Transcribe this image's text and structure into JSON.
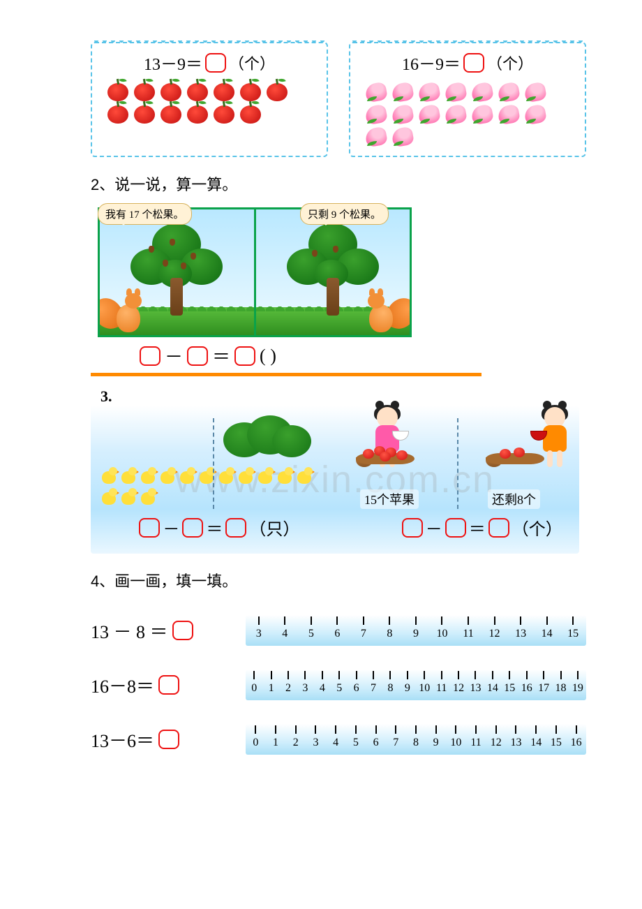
{
  "banner_apples": {
    "eq_lhs": "13－9＝",
    "unit": "（个）",
    "count": 13
  },
  "banner_peaches": {
    "eq_lhs": "16－9＝",
    "unit": "（个）",
    "count": 16
  },
  "q2": {
    "title": "2、说一说，算一算。",
    "bubble_left": "我有 17 个松果。",
    "bubble_right": "只剩 9 个松果。",
    "eq_unit": "(   )"
  },
  "q3": {
    "number": "3.",
    "chicks_unit": "（只）",
    "apples_label_left": "15个苹果",
    "apples_label_right": "还剩8个",
    "apples_unit": "（个）"
  },
  "watermark": "www.zixin.com.cn",
  "q4": {
    "title": "4、画一画，填一填。",
    "rows": [
      {
        "lhs": "13 － 8 ＝",
        "start": 3,
        "end": 15
      },
      {
        "lhs": "16－8＝",
        "start": 0,
        "end": 19
      },
      {
        "lhs": "13－6＝",
        "start": 0,
        "end": 16
      }
    ]
  }
}
